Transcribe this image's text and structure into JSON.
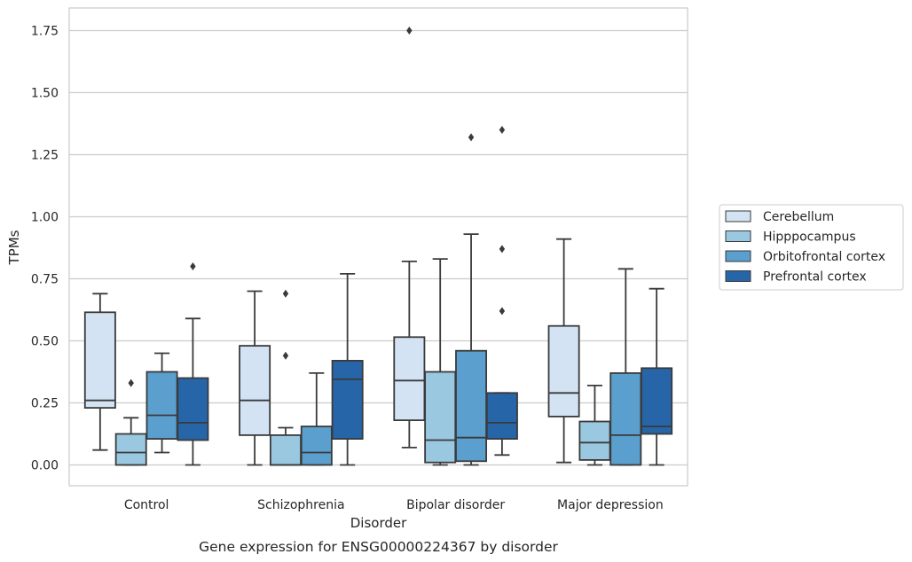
{
  "chart_data": {
    "type": "boxplot",
    "xlabel": "Disorder",
    "ylabel": "TPMs",
    "caption": "Gene expression for ENSG00000224367 by disorder",
    "categories": [
      "Control",
      "Schizophrenia",
      "Bipolar disorder",
      "Major depression"
    ],
    "ylim": [
      -0.08,
      1.84
    ],
    "yticks": [
      0.0,
      0.25,
      0.5,
      0.75,
      1.0,
      1.25,
      1.5,
      1.75
    ],
    "ytick_labels": [
      "0.00",
      "0.25",
      "0.50",
      "0.75",
      "1.00",
      "1.25",
      "1.50",
      "1.75"
    ],
    "grid": "horizontal",
    "legend_position": "outside-right",
    "series": [
      {
        "name": "Cerebellum",
        "color": "#d3e3f3",
        "boxes": [
          {
            "whislo": 0.06,
            "q1": 0.23,
            "med": 0.26,
            "q3": 0.615,
            "whishi": 0.69,
            "fliers": []
          },
          {
            "whislo": 0.0,
            "q1": 0.12,
            "med": 0.26,
            "q3": 0.48,
            "whishi": 0.7,
            "fliers": []
          },
          {
            "whislo": 0.07,
            "q1": 0.18,
            "med": 0.34,
            "q3": 0.515,
            "whishi": 0.82,
            "fliers": [
              1.75
            ]
          },
          {
            "whislo": 0.01,
            "q1": 0.195,
            "med": 0.29,
            "q3": 0.56,
            "whishi": 0.91,
            "fliers": []
          }
        ]
      },
      {
        "name": "Hipppocampus",
        "color": "#9ac8e0",
        "boxes": [
          {
            "whislo": 0.0,
            "q1": 0.0,
            "med": 0.05,
            "q3": 0.125,
            "whishi": 0.19,
            "fliers": [
              0.33
            ]
          },
          {
            "whislo": 0.0,
            "q1": 0.0,
            "med": 0.0,
            "q3": 0.12,
            "whishi": 0.15,
            "fliers": [
              0.44,
              0.69
            ]
          },
          {
            "whislo": 0.0,
            "q1": 0.01,
            "med": 0.1,
            "q3": 0.375,
            "whishi": 0.83,
            "fliers": []
          },
          {
            "whislo": 0.0,
            "q1": 0.02,
            "med": 0.09,
            "q3": 0.175,
            "whishi": 0.32,
            "fliers": []
          }
        ]
      },
      {
        "name": "Orbitofrontal cortex",
        "color": "#5a9fcd",
        "boxes": [
          {
            "whislo": 0.05,
            "q1": 0.105,
            "med": 0.2,
            "q3": 0.375,
            "whishi": 0.45,
            "fliers": []
          },
          {
            "whislo": 0.0,
            "q1": 0.0,
            "med": 0.05,
            "q3": 0.155,
            "whishi": 0.37,
            "fliers": []
          },
          {
            "whislo": 0.0,
            "q1": 0.015,
            "med": 0.11,
            "q3": 0.46,
            "whishi": 0.93,
            "fliers": [
              1.32
            ]
          },
          {
            "whislo": 0.0,
            "q1": 0.0,
            "med": 0.12,
            "q3": 0.37,
            "whishi": 0.79,
            "fliers": []
          }
        ]
      },
      {
        "name": "Prefrontal cortex",
        "color": "#2666a8",
        "boxes": [
          {
            "whislo": 0.0,
            "q1": 0.1,
            "med": 0.17,
            "q3": 0.35,
            "whishi": 0.59,
            "fliers": [
              0.8
            ]
          },
          {
            "whislo": 0.0,
            "q1": 0.105,
            "med": 0.345,
            "q3": 0.42,
            "whishi": 0.77,
            "fliers": []
          },
          {
            "whislo": 0.04,
            "q1": 0.105,
            "med": 0.17,
            "q3": 0.29,
            "whishi": 0.29,
            "fliers": [
              0.62,
              0.87,
              1.35
            ]
          },
          {
            "whislo": 0.0,
            "q1": 0.125,
            "med": 0.155,
            "q3": 0.39,
            "whishi": 0.71,
            "fliers": []
          }
        ]
      }
    ]
  }
}
